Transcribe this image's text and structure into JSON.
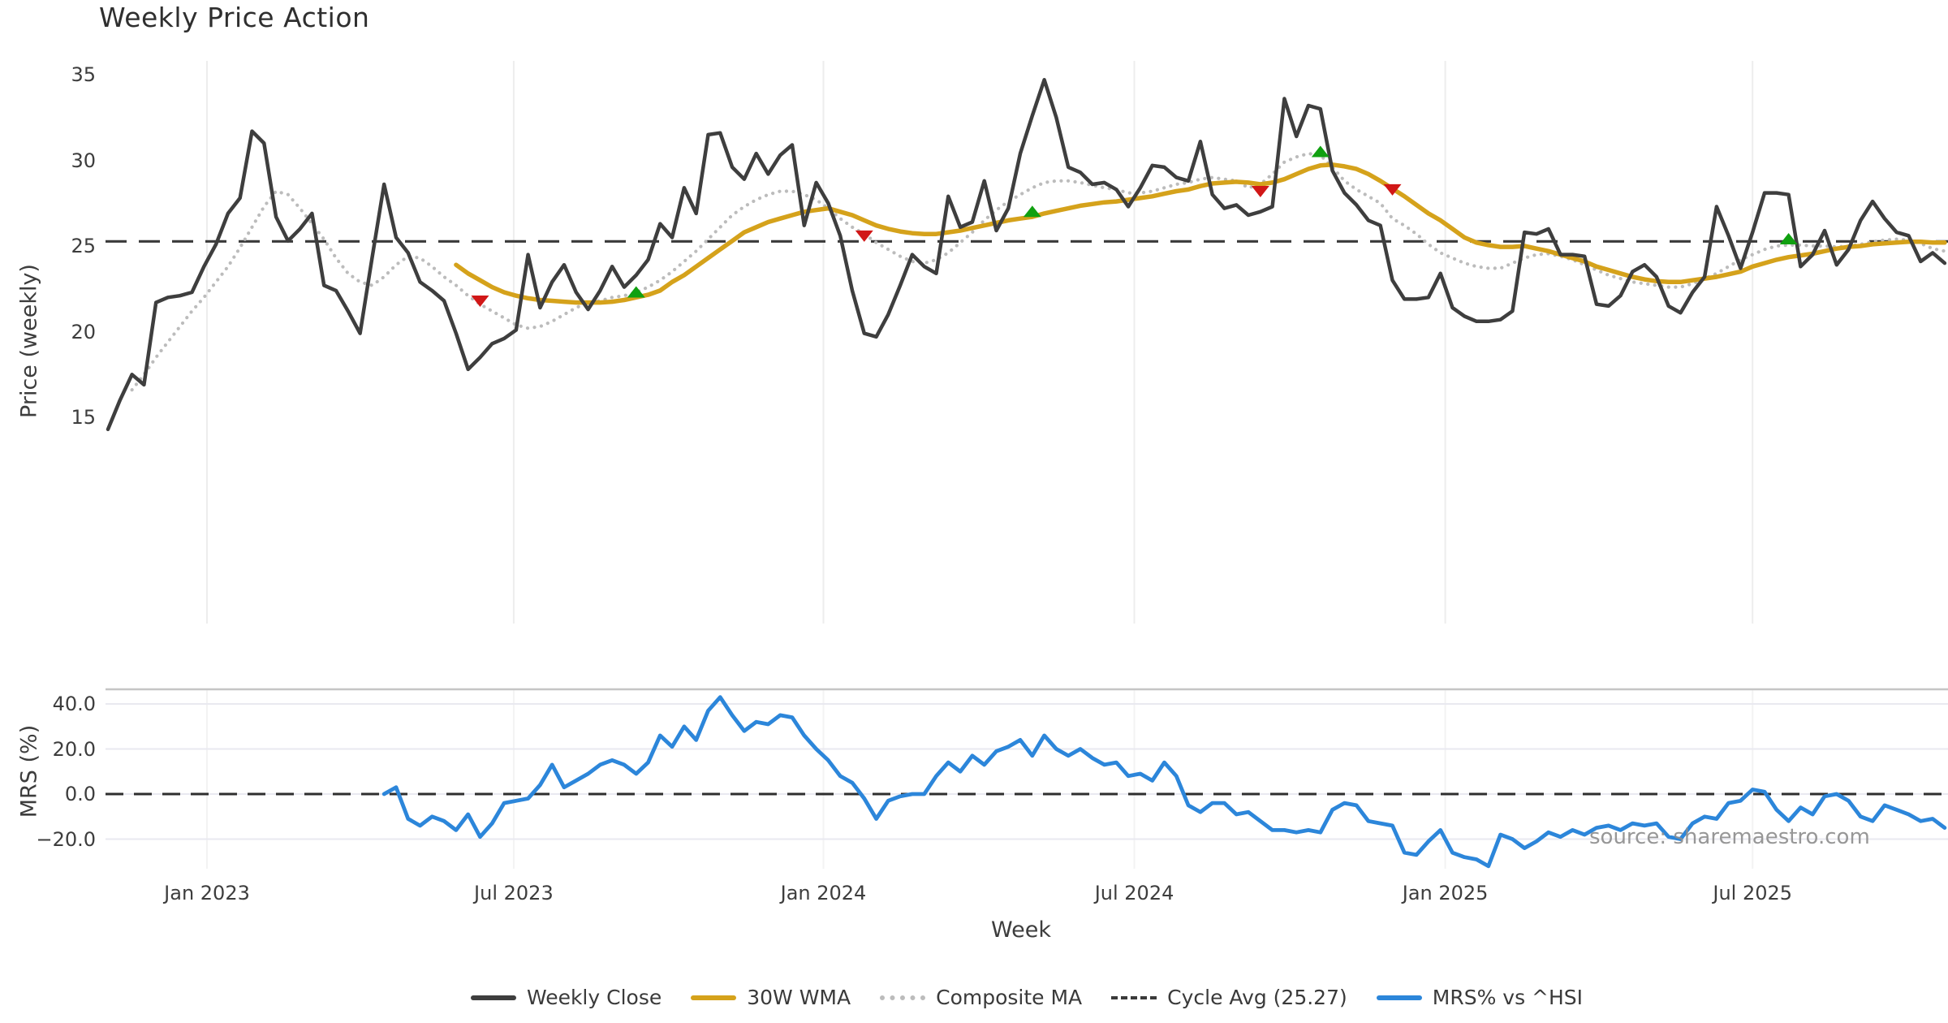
{
  "title": "Weekly Price Action",
  "watermark": "source: sharemaestro.com",
  "colors": {
    "weekly_close": "#3e3e3e",
    "wma_30w": "#d5a21b",
    "composite_ma": "#bcbcbc",
    "cycle_avg": "#3a3a3a",
    "mrs": "#2c86da",
    "buy_marker": "#10a010",
    "sell_marker": "#d11717",
    "grid_top": "#ededed",
    "grid_bottom": "#e9e9f0",
    "grid_bottom_vertical": "#f3f3f3",
    "spine": "#c5c5c5",
    "text": "#3a3a3a",
    "watermark_color": "#8f8f8f"
  },
  "legend": {
    "items": [
      {
        "label": "Weekly Close",
        "style": "solid",
        "color": "#3e3e3e"
      },
      {
        "label": "30W WMA",
        "style": "solid",
        "color": "#d5a21b"
      },
      {
        "label": "Composite MA",
        "style": "dotted",
        "color": "#bcbcbc"
      },
      {
        "label": "Cycle Avg (25.27)",
        "style": "dashed",
        "color": "#3a3a3a"
      },
      {
        "label": "MRS% vs ^HSI",
        "style": "solid",
        "color": "#2c86da"
      }
    ]
  },
  "chart_data": {
    "type": "line",
    "title": "Weekly Price Action",
    "x_axis": {
      "label": "Week",
      "tick_labels": [
        "Jan 2023",
        "Jul 2023",
        "Jan 2024",
        "Jul 2024",
        "Jan 2025",
        "Jul 2025"
      ],
      "tick_weeks": [
        8.25,
        33.8,
        59.6,
        85.5,
        111.4,
        137.0
      ],
      "total_weeks": 154
    },
    "panels": [
      {
        "name": "price",
        "ylabel": "Price (weekly)",
        "yticks": [
          35,
          30,
          25,
          20,
          15
        ],
        "ytick_labels": [
          "35",
          "30",
          "25",
          "20",
          "15"
        ],
        "grid": "vertical-only",
        "cycle_avg": 25.27,
        "series": {
          "weekly_close": {
            "start_week": 0,
            "values": [
              14.3,
              16.0,
              17.5,
              16.9,
              21.7,
              22.0,
              22.1,
              22.3,
              23.8,
              25.1,
              26.9,
              27.8,
              31.7,
              31.0,
              26.7,
              25.3,
              26.0,
              26.9,
              22.7,
              22.4,
              21.2,
              19.9,
              24.3,
              28.6,
              25.5,
              24.6,
              22.9,
              22.4,
              21.8,
              19.9,
              17.8,
              18.5,
              19.3,
              19.6,
              20.1,
              24.5,
              21.4,
              22.9,
              23.9,
              22.3,
              21.3,
              22.4,
              23.8,
              22.6,
              23.3,
              24.2,
              26.3,
              25.5,
              28.4,
              26.9,
              31.5,
              31.6,
              29.6,
              28.9,
              30.4,
              29.2,
              30.3,
              30.9,
              26.2,
              28.7,
              27.5,
              25.6,
              22.4,
              19.9,
              19.7,
              21.0,
              22.7,
              24.5,
              23.8,
              23.4,
              27.9,
              26.1,
              26.4,
              28.8,
              25.9,
              27.2,
              30.4,
              32.6,
              34.7,
              32.5,
              29.6,
              29.3,
              28.6,
              28.7,
              28.3,
              27.3,
              28.4,
              29.7,
              29.6,
              29.0,
              28.8,
              31.1,
              28.0,
              27.2,
              27.4,
              26.8,
              27.0,
              27.3,
              33.6,
              31.4,
              33.2,
              33.0,
              29.4,
              28.1,
              27.4,
              26.5,
              26.2,
              23.0,
              21.9,
              21.9,
              22.0,
              23.4,
              21.4,
              20.9,
              20.6,
              20.6,
              20.7,
              21.2,
              25.8,
              25.7,
              26.0,
              24.5,
              24.5,
              24.4,
              21.6,
              21.5,
              22.1,
              23.5,
              23.9,
              23.2,
              21.5,
              21.1,
              22.3,
              23.2,
              27.3,
              25.6,
              23.7,
              25.8,
              28.1,
              28.1,
              28.0,
              23.8,
              24.5,
              25.9,
              23.9,
              24.8,
              26.5,
              27.6,
              26.6,
              25.8,
              25.6,
              24.1,
              24.6,
              24.0
            ]
          },
          "wma_30w": {
            "start_week": 29,
            "values": [
              23.9,
              23.4,
              23.0,
              22.6,
              22.3,
              22.1,
              21.95,
              21.85,
              21.8,
              21.75,
              21.7,
              21.7,
              21.7,
              21.75,
              21.85,
              22.0,
              22.15,
              22.4,
              22.9,
              23.3,
              23.8,
              24.3,
              24.8,
              25.3,
              25.8,
              26.1,
              26.4,
              26.6,
              26.8,
              27.0,
              27.1,
              27.2,
              27.0,
              26.8,
              26.5,
              26.2,
              26.0,
              25.85,
              25.75,
              25.7,
              25.7,
              25.8,
              25.9,
              26.05,
              26.2,
              26.35,
              26.5,
              26.6,
              26.7,
              26.9,
              27.05,
              27.2,
              27.35,
              27.45,
              27.55,
              27.6,
              27.7,
              27.8,
              27.9,
              28.05,
              28.2,
              28.3,
              28.5,
              28.65,
              28.7,
              28.75,
              28.7,
              28.6,
              28.7,
              28.9,
              29.2,
              29.5,
              29.7,
              29.75,
              29.65,
              29.5,
              29.2,
              28.8,
              28.35,
              27.9,
              27.4,
              26.9,
              26.5,
              26.0,
              25.5,
              25.2,
              25.05,
              24.95,
              24.95,
              25.0,
              24.85,
              24.7,
              24.5,
              24.3,
              24.1,
              23.8,
              23.6,
              23.4,
              23.2,
              23.05,
              22.95,
              22.9,
              22.9,
              23.0,
              23.1,
              23.2,
              23.35,
              23.5,
              23.8,
              24.0,
              24.2,
              24.35,
              24.45,
              24.55,
              24.7,
              24.85,
              24.95,
              25.0,
              25.1,
              25.15,
              25.2,
              25.25,
              25.25,
              25.2,
              25.2
            ]
          },
          "composite_ma": {
            "start_week": 2,
            "values": [
              16.6,
              17.5,
              18.5,
              19.4,
              20.3,
              21.2,
              22.0,
              22.9,
              23.8,
              24.9,
              26.1,
              27.3,
              28.2,
              28.0,
              27.2,
              26.3,
              25.4,
              24.3,
              23.4,
              22.9,
              22.7,
              23.2,
              23.9,
              24.4,
              24.3,
              23.8,
              23.2,
              22.7,
              22.1,
              21.6,
              21.2,
              20.8,
              20.4,
              20.2,
              20.3,
              20.6,
              21.0,
              21.4,
              21.7,
              21.8,
              22.0,
              22.1,
              22.3,
              22.6,
              23.0,
              23.5,
              24.1,
              24.7,
              25.4,
              26.1,
              26.8,
              27.3,
              27.7,
              28.0,
              28.2,
              28.2,
              28.0,
              27.7,
              27.2,
              26.6,
              26.1,
              25.7,
              25.2,
              24.8,
              24.4,
              24.1,
              24.0,
              24.2,
              24.6,
              25.2,
              25.8,
              26.5,
              27.1,
              27.6,
              28.0,
              28.4,
              28.7,
              28.8,
              28.8,
              28.7,
              28.55,
              28.4,
              28.3,
              28.1,
              28.1,
              28.2,
              28.4,
              28.6,
              28.7,
              28.9,
              29.0,
              28.9,
              28.8,
              28.4,
              28.6,
              29.2,
              29.9,
              30.2,
              30.4,
              30.3,
              29.6,
              28.8,
              28.3,
              27.9,
              27.5,
              26.6,
              26.2,
              25.7,
              25.1,
              24.6,
              24.3,
              24.0,
              23.8,
              23.7,
              23.7,
              24.0,
              24.3,
              24.5,
              24.55,
              24.4,
              24.2,
              23.9,
              23.6,
              23.3,
              23.1,
              22.9,
              22.8,
              22.7,
              22.6,
              22.6,
              22.8,
              23.1,
              23.4,
              23.8,
              24.2,
              24.5,
              24.8,
              25.0,
              25.05,
              25.05,
              25.0,
              25.0,
              24.95,
              25.0,
              25.1,
              25.25,
              25.35,
              25.4,
              25.35,
              25.15,
              24.85,
              24.7
            ]
          }
        },
        "markers": {
          "sell": [
            {
              "week": 31,
              "value": 21.8
            },
            {
              "week": 63,
              "value": 25.6
            },
            {
              "week": 96,
              "value": 28.2
            },
            {
              "week": 107,
              "value": 28.3
            }
          ],
          "buy": [
            {
              "week": 44,
              "value": 22.3
            },
            {
              "week": 77,
              "value": 27.0
            },
            {
              "week": 101,
              "value": 30.5
            },
            {
              "week": 140,
              "value": 25.4
            }
          ]
        }
      },
      {
        "name": "mrs",
        "ylabel": "MRS (%)",
        "yticks": [
          40,
          20,
          0,
          -20
        ],
        "ytick_labels": [
          "40.0",
          "20.0",
          "0.0",
          "−20.0"
        ],
        "zero_line": 0,
        "series": {
          "mrs_pct": {
            "start_week": 23,
            "values": [
              0,
              3,
              -11,
              -14,
              -10,
              -12,
              -16,
              -9,
              -19,
              -13,
              -4,
              -3,
              -2,
              4,
              13,
              3,
              6,
              9,
              13,
              15,
              13,
              9,
              14,
              26,
              21,
              30,
              24,
              37,
              43,
              35,
              28,
              32,
              31,
              35,
              34,
              26,
              20,
              15,
              8,
              5,
              -2,
              -11,
              -3,
              -1,
              0,
              0,
              8,
              14,
              10,
              17,
              13,
              19,
              21,
              24,
              17,
              26,
              20,
              17,
              20,
              16,
              13,
              14,
              8,
              9,
              6,
              14,
              8,
              -5,
              -8,
              -4,
              -4,
              -9,
              -8,
              -12,
              -16,
              -16,
              -17,
              -16,
              -17,
              -7,
              -4,
              -5,
              -12,
              -13,
              -14,
              -26,
              -27,
              -21,
              -16,
              -26,
              -28,
              -29,
              -32,
              -18,
              -20,
              -24,
              -21,
              -17,
              -19,
              -16,
              -18,
              -15,
              -14,
              -16,
              -13,
              -14,
              -13,
              -19,
              -20,
              -13,
              -10,
              -11,
              -4,
              -3,
              2,
              1,
              -7,
              -12,
              -6,
              -9,
              -1,
              0,
              -3,
              -10,
              -12,
              -5,
              -7,
              -9,
              -12,
              -11,
              -15
            ]
          }
        }
      }
    ]
  }
}
